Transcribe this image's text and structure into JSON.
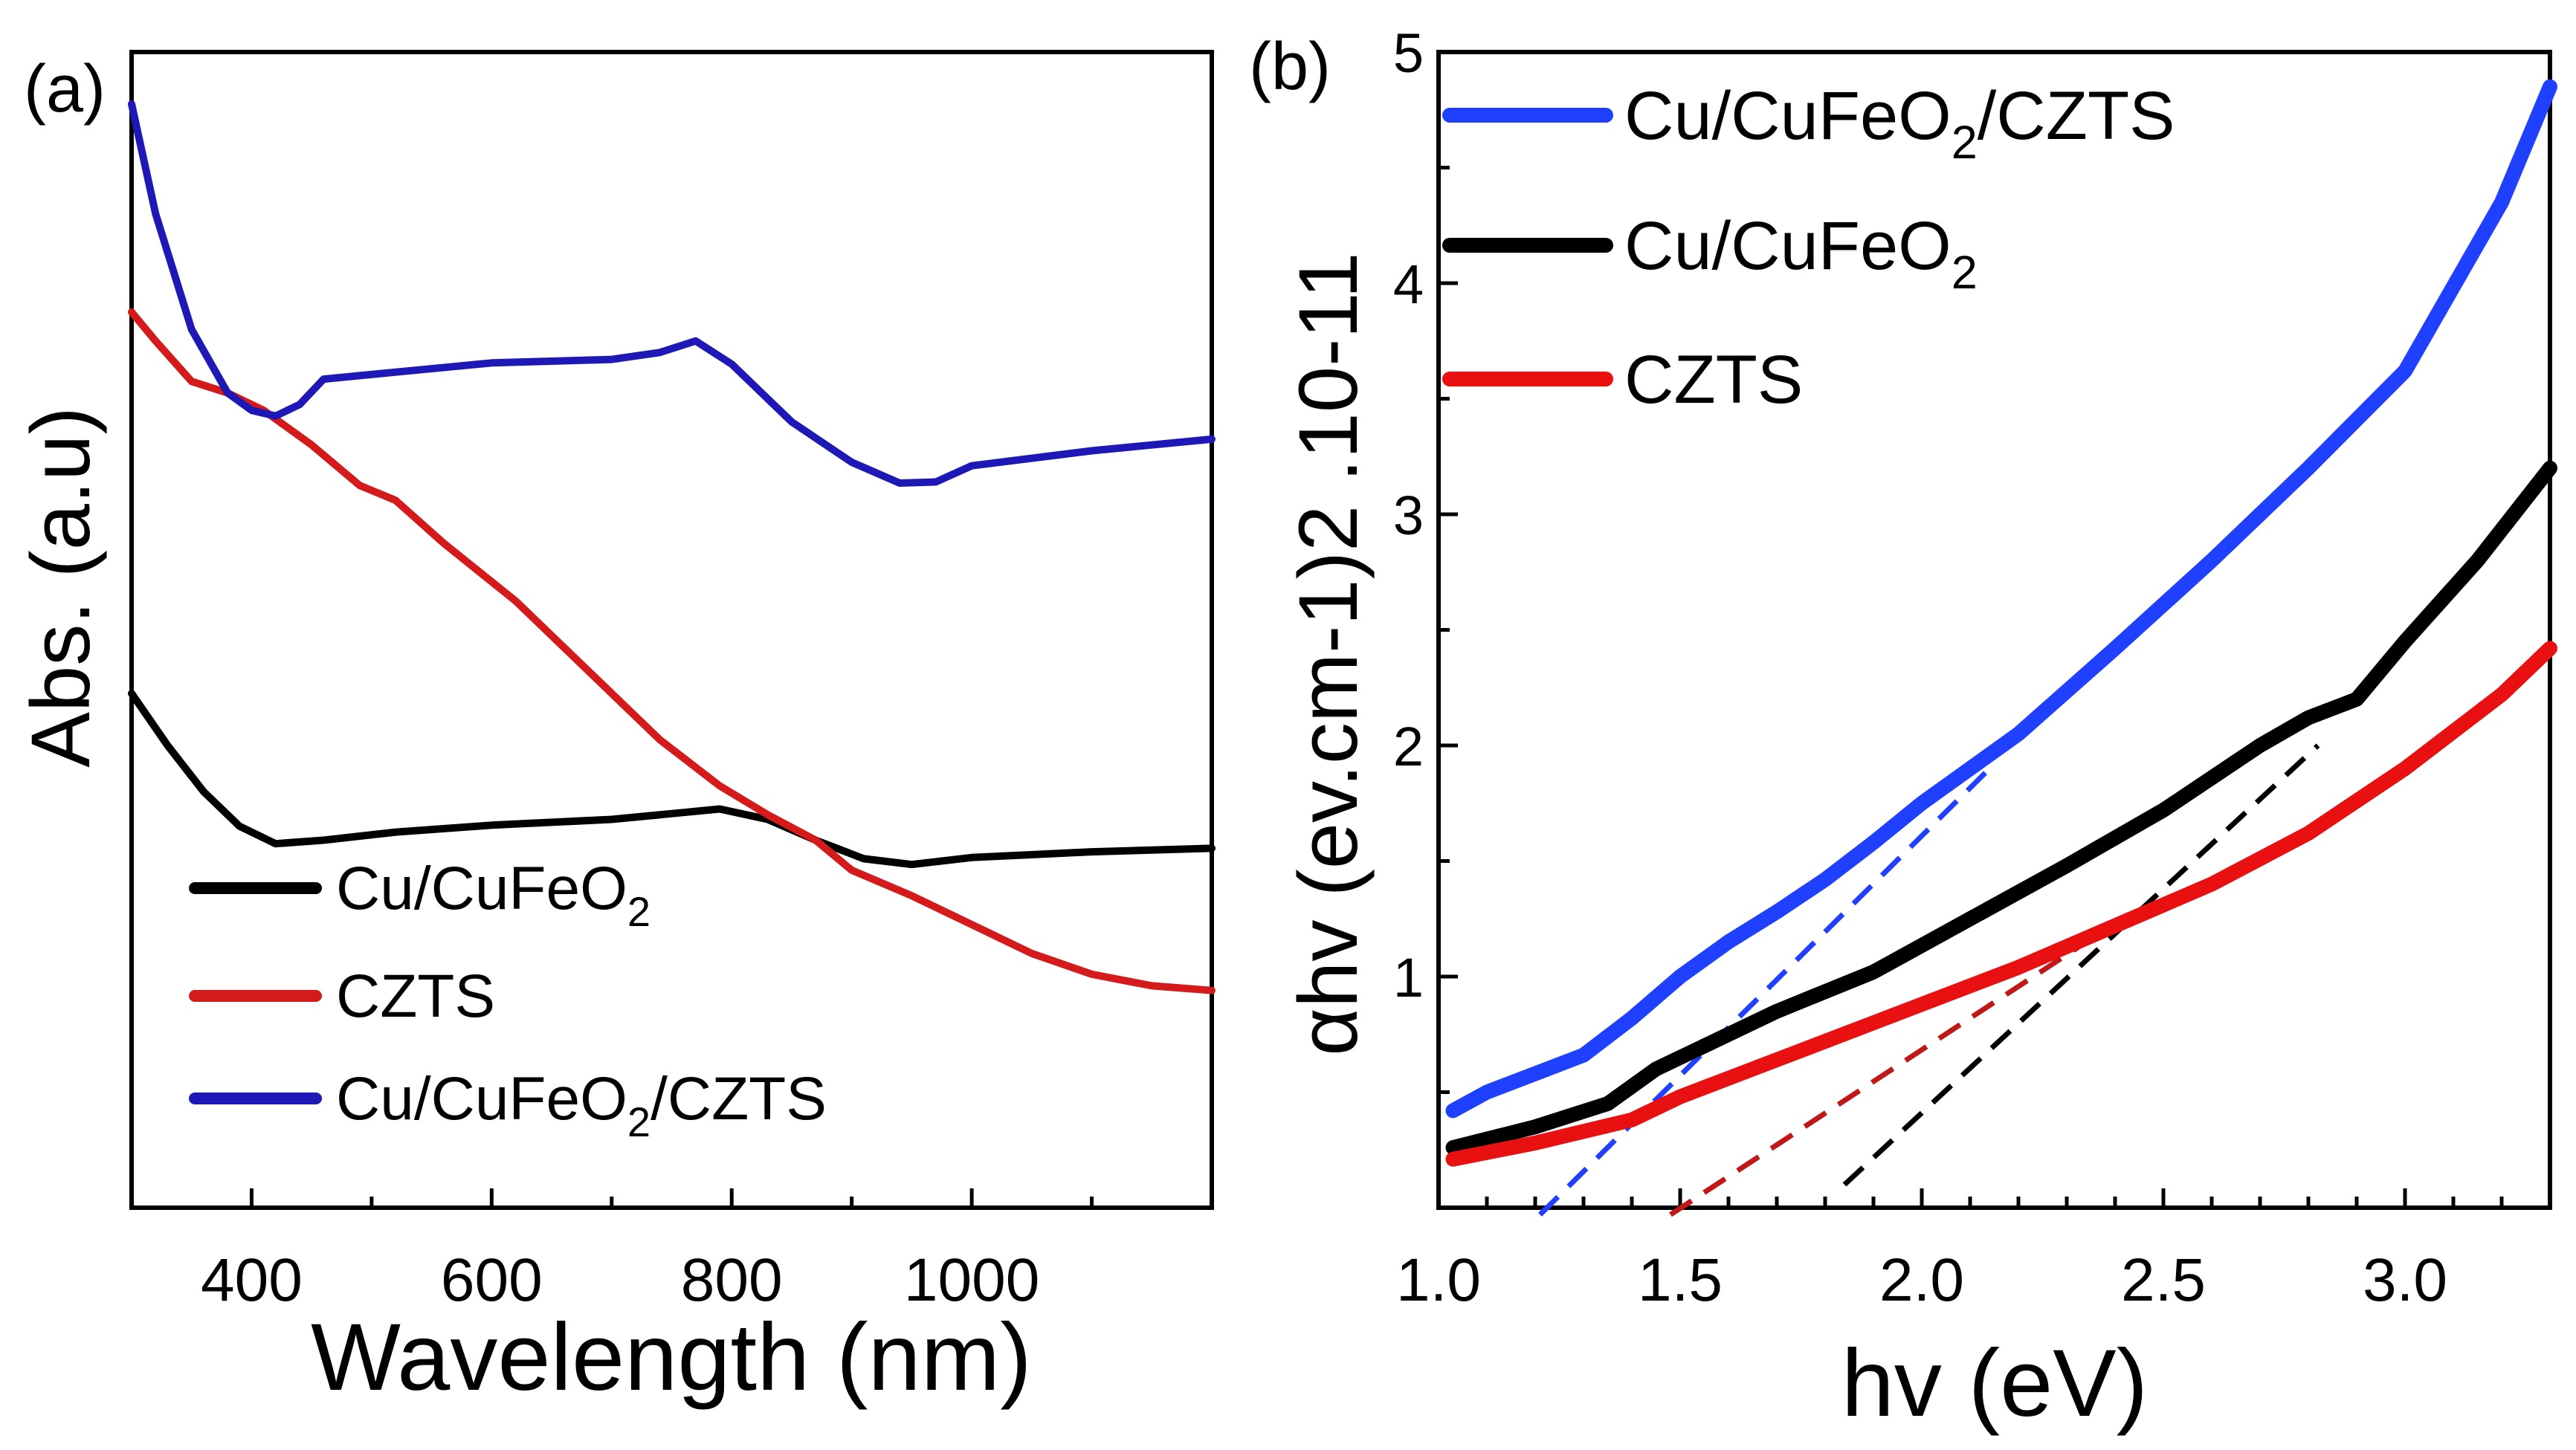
{
  "chart_data": [
    {
      "panel_label": "(a)",
      "type": "line",
      "xlabel": "Wavelength (nm)",
      "ylabel": "Abs. (a.u)",
      "xlim": [
        300,
        1200
      ],
      "ylim": [
        0,
        1
      ],
      "x_ticks": [
        400,
        600,
        800,
        1000
      ],
      "legend_position": "bottom-left",
      "series": [
        {
          "name": "Cu/CuFeO",
          "sub": "2",
          "suffix": "",
          "color": "#000000",
          "points": [
            [
              300,
              0.445
            ],
            [
              330,
              0.4
            ],
            [
              360,
              0.36
            ],
            [
              390,
              0.33
            ],
            [
              420,
              0.315
            ],
            [
              460,
              0.318
            ],
            [
              520,
              0.325
            ],
            [
              600,
              0.331
            ],
            [
              700,
              0.336
            ],
            [
              760,
              0.342
            ],
            [
              790,
              0.345
            ],
            [
              830,
              0.336
            ],
            [
              870,
              0.318
            ],
            [
              910,
              0.302
            ],
            [
              950,
              0.297
            ],
            [
              1000,
              0.303
            ],
            [
              1100,
              0.308
            ],
            [
              1200,
              0.311
            ]
          ]
        },
        {
          "name": "CZTS",
          "sub": "",
          "suffix": "",
          "color": "#d41a1a",
          "points": [
            [
              300,
              0.775
            ],
            [
              320,
              0.75
            ],
            [
              350,
              0.715
            ],
            [
              380,
              0.705
            ],
            [
              410,
              0.69
            ],
            [
              450,
              0.66
            ],
            [
              490,
              0.625
            ],
            [
              520,
              0.612
            ],
            [
              560,
              0.575
            ],
            [
              620,
              0.525
            ],
            [
              680,
              0.465
            ],
            [
              740,
              0.405
            ],
            [
              790,
              0.365
            ],
            [
              830,
              0.34
            ],
            [
              870,
              0.318
            ],
            [
              900,
              0.292
            ],
            [
              950,
              0.27
            ],
            [
              1000,
              0.245
            ],
            [
              1050,
              0.22
            ],
            [
              1100,
              0.202
            ],
            [
              1150,
              0.192
            ],
            [
              1200,
              0.188
            ]
          ]
        },
        {
          "name": "Cu/CuFeO",
          "sub": "2",
          "suffix": "/CZTS",
          "color": "#1e18b6",
          "points": [
            [
              300,
              0.955
            ],
            [
              320,
              0.86
            ],
            [
              350,
              0.76
            ],
            [
              380,
              0.705
            ],
            [
              400,
              0.69
            ],
            [
              420,
              0.685
            ],
            [
              440,
              0.695
            ],
            [
              460,
              0.717
            ],
            [
              520,
              0.723
            ],
            [
              600,
              0.731
            ],
            [
              700,
              0.734
            ],
            [
              740,
              0.74
            ],
            [
              770,
              0.75
            ],
            [
              800,
              0.73
            ],
            [
              850,
              0.68
            ],
            [
              900,
              0.645
            ],
            [
              940,
              0.627
            ],
            [
              970,
              0.628
            ],
            [
              1000,
              0.642
            ],
            [
              1100,
              0.655
            ],
            [
              1200,
              0.665
            ]
          ]
        }
      ]
    },
    {
      "panel_label": "(b)",
      "type": "line",
      "xlabel": "hv (eV)",
      "ylabel": "αhv (ev.cm-1)2 .10-11",
      "xlim": [
        1.0,
        3.3
      ],
      "ylim": [
        0,
        5
      ],
      "x_ticks": [
        "1.0",
        "1.5",
        "2.0",
        "2.5",
        "3.0"
      ],
      "y_ticks": [
        "1",
        "2",
        "3",
        "4",
        "5"
      ],
      "legend_position": "top-left",
      "series": [
        {
          "name": "Cu/CuFeO",
          "sub": "2",
          "suffix": "/CZTS",
          "color": "#2040ff",
          "points": [
            [
              1.03,
              0.42
            ],
            [
              1.1,
              0.5
            ],
            [
              1.2,
              0.58
            ],
            [
              1.3,
              0.66
            ],
            [
              1.4,
              0.82
            ],
            [
              1.5,
              1.0
            ],
            [
              1.6,
              1.15
            ],
            [
              1.7,
              1.28
            ],
            [
              1.8,
              1.42
            ],
            [
              1.9,
              1.58
            ],
            [
              2.0,
              1.75
            ],
            [
              2.2,
              2.05
            ],
            [
              2.4,
              2.42
            ],
            [
              2.6,
              2.8
            ],
            [
              2.8,
              3.2
            ],
            [
              3.0,
              3.62
            ],
            [
              3.2,
              4.35
            ],
            [
              3.3,
              4.85
            ]
          ]
        },
        {
          "name": "Cu/CuFeO",
          "sub": "2",
          "suffix": "",
          "color": "#000000",
          "points": [
            [
              1.03,
              0.26
            ],
            [
              1.2,
              0.35
            ],
            [
              1.35,
              0.45
            ],
            [
              1.45,
              0.6
            ],
            [
              1.55,
              0.7
            ],
            [
              1.7,
              0.85
            ],
            [
              1.9,
              1.02
            ],
            [
              2.1,
              1.25
            ],
            [
              2.3,
              1.48
            ],
            [
              2.5,
              1.72
            ],
            [
              2.7,
              2.0
            ],
            [
              2.8,
              2.12
            ],
            [
              2.9,
              2.2
            ],
            [
              3.0,
              2.45
            ],
            [
              3.15,
              2.8
            ],
            [
              3.3,
              3.2
            ]
          ]
        },
        {
          "name": "CZTS",
          "sub": "",
          "suffix": "",
          "color": "#e81010",
          "points": [
            [
              1.03,
              0.21
            ],
            [
              1.2,
              0.28
            ],
            [
              1.4,
              0.38
            ],
            [
              1.5,
              0.48
            ],
            [
              1.6,
              0.56
            ],
            [
              1.8,
              0.72
            ],
            [
              2.0,
              0.88
            ],
            [
              2.2,
              1.04
            ],
            [
              2.4,
              1.22
            ],
            [
              2.6,
              1.4
            ],
            [
              2.8,
              1.62
            ],
            [
              3.0,
              1.9
            ],
            [
              3.2,
              2.22
            ],
            [
              3.3,
              2.42
            ]
          ]
        }
      ],
      "tangents": [
        {
          "color": "#2040ff",
          "x": [
            1.21,
            2.15
          ],
          "y": [
            -0.03,
            1.92
          ]
        },
        {
          "color": "#000000",
          "x": [
            1.84,
            2.82
          ],
          "y": [
            0.1,
            2.0
          ]
        },
        {
          "color": "#c01818",
          "x": [
            1.48,
            2.45
          ],
          "y": [
            -0.03,
            1.3
          ]
        }
      ]
    }
  ]
}
